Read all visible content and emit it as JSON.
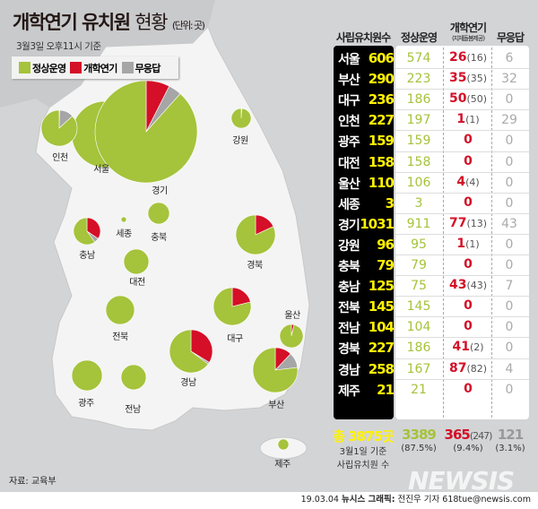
{
  "title": {
    "main": "개학연기 유치원",
    "light": "현황",
    "unit": "(단위: 곳)"
  },
  "subtitle": "3월3일 오후11시 기준",
  "legend": [
    "정상운영",
    "개학연기",
    "무응답"
  ],
  "colors": {
    "normal": "#a5c33b",
    "delayed": "#d40f27",
    "noresponse": "#a6a6a6"
  },
  "table": {
    "headers": {
      "total": "사립유치원수",
      "normal": "정상운영",
      "delayed": "개학연기",
      "delayed_note": "(지체돌봄제공)",
      "noresponse": "무응답"
    },
    "rows": [
      {
        "region": "서울",
        "total": "606",
        "normal": "574",
        "delayed": "26",
        "care": "(16)",
        "noresponse": "6"
      },
      {
        "region": "부산",
        "total": "290",
        "normal": "223",
        "delayed": "35",
        "care": "(35)",
        "noresponse": "32"
      },
      {
        "region": "대구",
        "total": "236",
        "normal": "186",
        "delayed": "50",
        "care": "(50)",
        "noresponse": "0"
      },
      {
        "region": "인천",
        "total": "227",
        "normal": "197",
        "delayed": "1",
        "care": "(1)",
        "noresponse": "29"
      },
      {
        "region": "광주",
        "total": "159",
        "normal": "159",
        "delayed": "0",
        "care": "",
        "noresponse": "0"
      },
      {
        "region": "대전",
        "total": "158",
        "normal": "158",
        "delayed": "0",
        "care": "",
        "noresponse": "0"
      },
      {
        "region": "울산",
        "total": "110",
        "normal": "106",
        "delayed": "4",
        "care": "(4)",
        "noresponse": "0"
      },
      {
        "region": "세종",
        "total": "3",
        "normal": "3",
        "delayed": "0",
        "care": "",
        "noresponse": "0"
      },
      {
        "region": "경기",
        "total": "1031",
        "normal": "911",
        "delayed": "77",
        "care": "(13)",
        "noresponse": "43"
      },
      {
        "region": "강원",
        "total": "96",
        "normal": "95",
        "delayed": "1",
        "care": "(1)",
        "noresponse": "0"
      },
      {
        "region": "충북",
        "total": "79",
        "normal": "79",
        "delayed": "0",
        "care": "",
        "noresponse": "0"
      },
      {
        "region": "충남",
        "total": "125",
        "normal": "75",
        "delayed": "43",
        "care": "(43)",
        "noresponse": "7"
      },
      {
        "region": "전북",
        "total": "145",
        "normal": "145",
        "delayed": "0",
        "care": "",
        "noresponse": "0"
      },
      {
        "region": "전남",
        "total": "104",
        "normal": "104",
        "delayed": "0",
        "care": "",
        "noresponse": "0"
      },
      {
        "region": "경북",
        "total": "227",
        "normal": "186",
        "delayed": "41",
        "care": "(2)",
        "noresponse": "0"
      },
      {
        "region": "경남",
        "total": "258",
        "normal": "167",
        "delayed": "87",
        "care": "(82)",
        "noresponse": "4"
      },
      {
        "region": "제주",
        "total": "21",
        "normal": "21",
        "delayed": "0",
        "care": "",
        "noresponse": "0"
      }
    ],
    "totals": {
      "total": "총 3875곳",
      "total_note1": "3월1일 기준",
      "total_note2": "사립유치원 수",
      "normal": "3389",
      "normal_pct": "(87.5%)",
      "delayed": "365",
      "care": "(247)",
      "delayed_pct": "(9.4%)",
      "noresponse": "121",
      "noresponse_pct": "(3.1%)"
    }
  },
  "chart_data": {
    "type": "pie",
    "series": [
      "정상운영",
      "개학연기",
      "무응답"
    ],
    "pies": [
      {
        "region": "서울",
        "values": [
          574,
          26,
          6
        ]
      },
      {
        "region": "부산",
        "values": [
          223,
          35,
          32
        ]
      },
      {
        "region": "대구",
        "values": [
          186,
          50,
          0
        ]
      },
      {
        "region": "인천",
        "values": [
          197,
          1,
          29
        ]
      },
      {
        "region": "광주",
        "values": [
          159,
          0,
          0
        ]
      },
      {
        "region": "대전",
        "values": [
          158,
          0,
          0
        ]
      },
      {
        "region": "울산",
        "values": [
          106,
          4,
          0
        ]
      },
      {
        "region": "세종",
        "values": [
          3,
          0,
          0
        ]
      },
      {
        "region": "경기",
        "values": [
          911,
          77,
          43
        ]
      },
      {
        "region": "강원",
        "values": [
          95,
          1,
          0
        ]
      },
      {
        "region": "충북",
        "values": [
          79,
          0,
          0
        ]
      },
      {
        "region": "충남",
        "values": [
          75,
          43,
          7
        ]
      },
      {
        "region": "전북",
        "values": [
          145,
          0,
          0
        ]
      },
      {
        "region": "전남",
        "values": [
          104,
          0,
          0
        ]
      },
      {
        "region": "경북",
        "values": [
          186,
          41,
          0
        ]
      },
      {
        "region": "경남",
        "values": [
          167,
          87,
          4
        ]
      },
      {
        "region": "제주",
        "values": [
          21,
          0,
          0
        ]
      }
    ]
  },
  "source": "자료: 교육부",
  "watermark": "NEWSIS",
  "footer": {
    "date": "19.03.04",
    "agency": "뉴시스 그래픽:",
    "credit": "전진우 기자 618tue@newsis.com"
  }
}
